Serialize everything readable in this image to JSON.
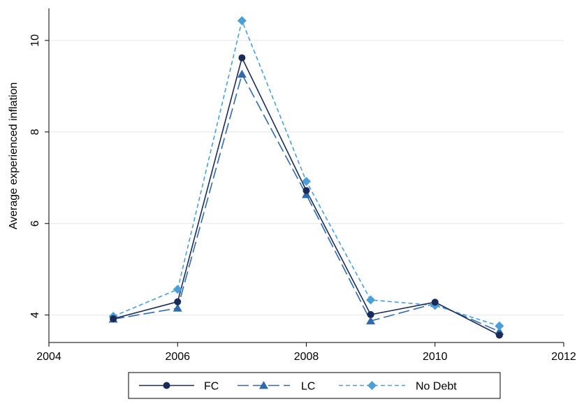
{
  "chart_data": {
    "type": "line",
    "title": "",
    "xlabel": "",
    "ylabel": "Average experienced inflation",
    "xlim": [
      2004,
      2012
    ],
    "ylim": [
      3.4,
      10.7
    ],
    "xticks": [
      2004,
      2006,
      2008,
      2010,
      2012
    ],
    "yticks": [
      4,
      6,
      8,
      10
    ],
    "grid": "horizontal",
    "legend_placement": "bottom",
    "series": [
      {
        "name": "FC",
        "color": "#1a2b57",
        "marker": "circle",
        "line_style": "solid",
        "x": [
          2005,
          2006,
          2007,
          2008,
          2009,
          2010,
          2011
        ],
        "y": [
          3.92,
          4.29,
          9.62,
          6.72,
          4.01,
          4.28,
          3.56
        ]
      },
      {
        "name": "LC",
        "color": "#2f6aad",
        "marker": "triangle",
        "line_style": "long-dash",
        "x": [
          2005,
          2006,
          2007,
          2008,
          2009,
          2010,
          2011
        ],
        "y": [
          3.91,
          4.15,
          9.26,
          6.63,
          3.87,
          4.25,
          3.64
        ]
      },
      {
        "name": "No Debt",
        "color": "#4a9fd6",
        "marker": "diamond",
        "line_style": "short-dash",
        "x": [
          2005,
          2006,
          2007,
          2008,
          2009,
          2010,
          2011
        ],
        "y": [
          3.97,
          4.56,
          10.43,
          6.92,
          4.33,
          4.21,
          3.76
        ]
      }
    ]
  }
}
